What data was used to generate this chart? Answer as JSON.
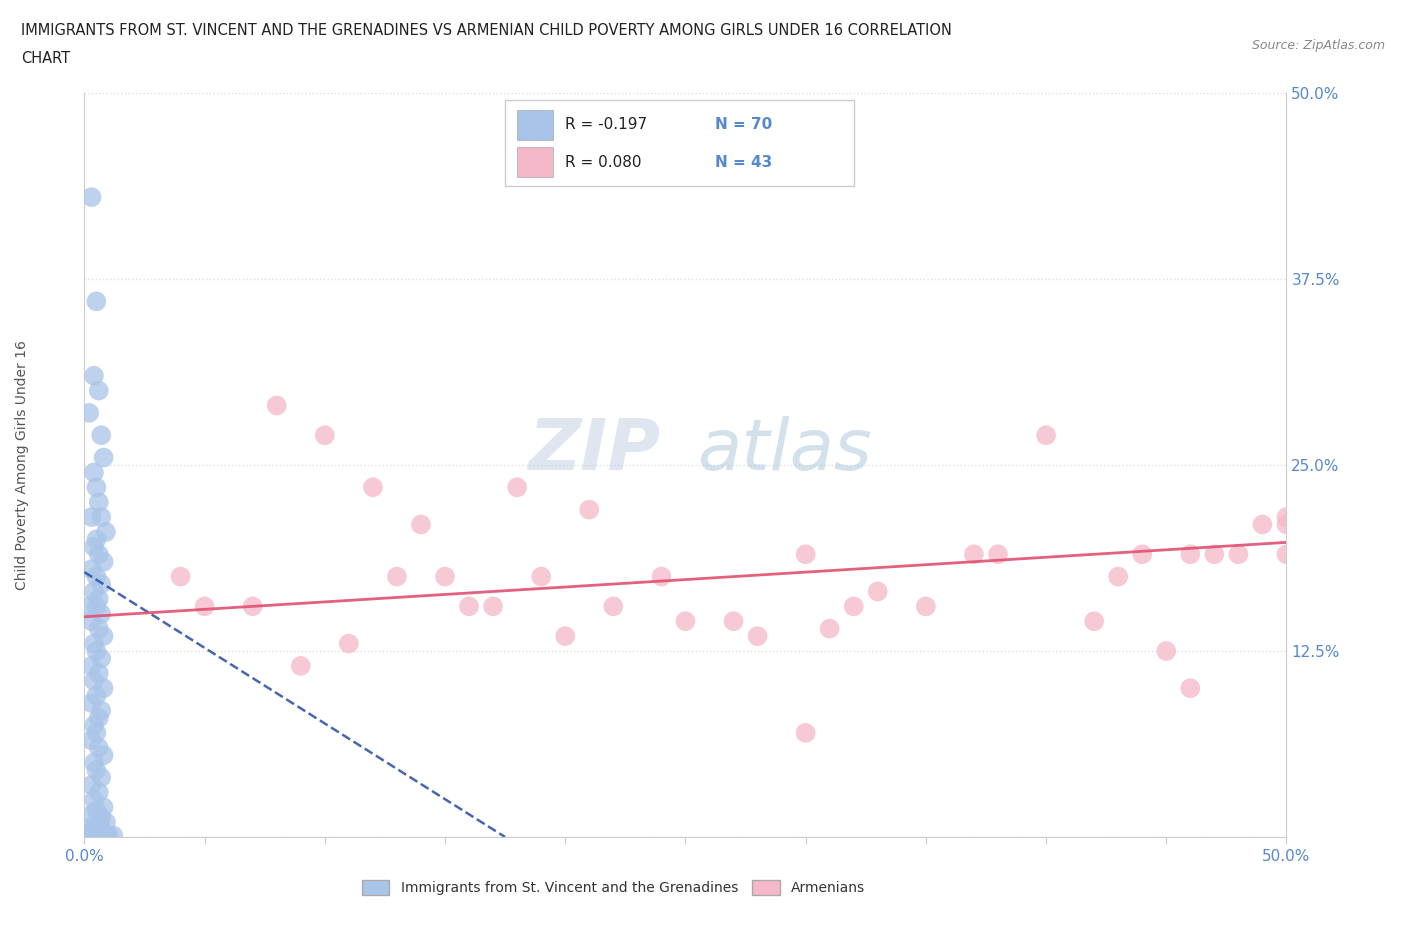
{
  "title_line1": "IMMIGRANTS FROM ST. VINCENT AND THE GRENADINES VS ARMENIAN CHILD POVERTY AMONG GIRLS UNDER 16 CORRELATION",
  "title_line2": "CHART",
  "source_text": "Source: ZipAtlas.com",
  "ylabel": "Child Poverty Among Girls Under 16",
  "xlim": [
    0.0,
    0.5
  ],
  "ylim": [
    0.0,
    0.5
  ],
  "xticks": [
    0.0,
    0.05,
    0.1,
    0.15,
    0.2,
    0.25,
    0.3,
    0.35,
    0.4,
    0.45,
    0.5
  ],
  "yticks": [
    0.0,
    0.125,
    0.25,
    0.375,
    0.5
  ],
  "ytick_labels": [
    "",
    "12.5%",
    "25.0%",
    "37.5%",
    "50.0%"
  ],
  "legend_r1": "R = -0.197",
  "legend_n1": "N = 70",
  "legend_r2": "R = 0.080",
  "legend_n2": "N = 43",
  "blue_color": "#a8c4e8",
  "pink_color": "#f5b8c8",
  "trend_blue_color": "#3355aa",
  "trend_pink_color": "#e05070",
  "watermark_zip": "ZIP",
  "watermark_atlas": "atlas",
  "legend_label_blue": "Immigrants from St. Vincent and the Grenadines",
  "legend_label_pink": "Armenians",
  "background_color": "#ffffff",
  "grid_color": "#dddddd",
  "tick_color": "#5588cc",
  "blue_scatter_x": [
    0.003,
    0.005,
    0.004,
    0.006,
    0.002,
    0.007,
    0.008,
    0.004,
    0.005,
    0.006,
    0.003,
    0.007,
    0.009,
    0.005,
    0.004,
    0.006,
    0.008,
    0.003,
    0.005,
    0.007,
    0.004,
    0.006,
    0.002,
    0.005,
    0.007,
    0.003,
    0.006,
    0.008,
    0.004,
    0.005,
    0.007,
    0.003,
    0.006,
    0.004,
    0.008,
    0.005,
    0.003,
    0.007,
    0.006,
    0.004,
    0.005,
    0.003,
    0.006,
    0.008,
    0.004,
    0.005,
    0.007,
    0.003,
    0.006,
    0.004,
    0.008,
    0.005,
    0.003,
    0.007,
    0.006,
    0.009,
    0.004,
    0.005,
    0.007,
    0.003,
    0.006,
    0.004,
    0.008,
    0.005,
    0.007,
    0.009,
    0.003,
    0.01,
    0.006,
    0.012
  ],
  "blue_scatter_y": [
    0.43,
    0.36,
    0.31,
    0.3,
    0.285,
    0.27,
    0.255,
    0.245,
    0.235,
    0.225,
    0.215,
    0.215,
    0.205,
    0.2,
    0.195,
    0.19,
    0.185,
    0.18,
    0.175,
    0.17,
    0.165,
    0.16,
    0.155,
    0.155,
    0.15,
    0.145,
    0.14,
    0.135,
    0.13,
    0.125,
    0.12,
    0.115,
    0.11,
    0.105,
    0.1,
    0.095,
    0.09,
    0.085,
    0.08,
    0.075,
    0.07,
    0.065,
    0.06,
    0.055,
    0.05,
    0.045,
    0.04,
    0.035,
    0.03,
    0.025,
    0.02,
    0.018,
    0.015,
    0.013,
    0.01,
    0.01,
    0.008,
    0.006,
    0.005,
    0.004,
    0.003,
    0.003,
    0.003,
    0.002,
    0.002,
    0.001,
    0.001,
    0.001,
    0.001,
    0.001
  ],
  "pink_scatter_x": [
    0.04,
    0.05,
    0.07,
    0.08,
    0.09,
    0.1,
    0.11,
    0.12,
    0.13,
    0.14,
    0.15,
    0.16,
    0.17,
    0.18,
    0.19,
    0.2,
    0.21,
    0.22,
    0.24,
    0.25,
    0.27,
    0.28,
    0.3,
    0.31,
    0.32,
    0.33,
    0.35,
    0.37,
    0.38,
    0.4,
    0.42,
    0.43,
    0.44,
    0.45,
    0.46,
    0.47,
    0.48,
    0.49,
    0.5,
    0.5,
    0.5,
    0.46,
    0.3
  ],
  "pink_scatter_y": [
    0.175,
    0.155,
    0.155,
    0.29,
    0.115,
    0.27,
    0.13,
    0.235,
    0.175,
    0.21,
    0.175,
    0.155,
    0.155,
    0.235,
    0.175,
    0.135,
    0.22,
    0.155,
    0.175,
    0.145,
    0.145,
    0.135,
    0.19,
    0.14,
    0.155,
    0.165,
    0.155,
    0.19,
    0.19,
    0.27,
    0.145,
    0.175,
    0.19,
    0.125,
    0.19,
    0.19,
    0.19,
    0.21,
    0.21,
    0.19,
    0.215,
    0.1,
    0.07
  ],
  "blue_trend_x": [
    0.0,
    0.175
  ],
  "blue_trend_y": [
    0.178,
    0.0
  ],
  "pink_trend_x": [
    0.0,
    0.5
  ],
  "pink_trend_y": [
    0.148,
    0.198
  ]
}
